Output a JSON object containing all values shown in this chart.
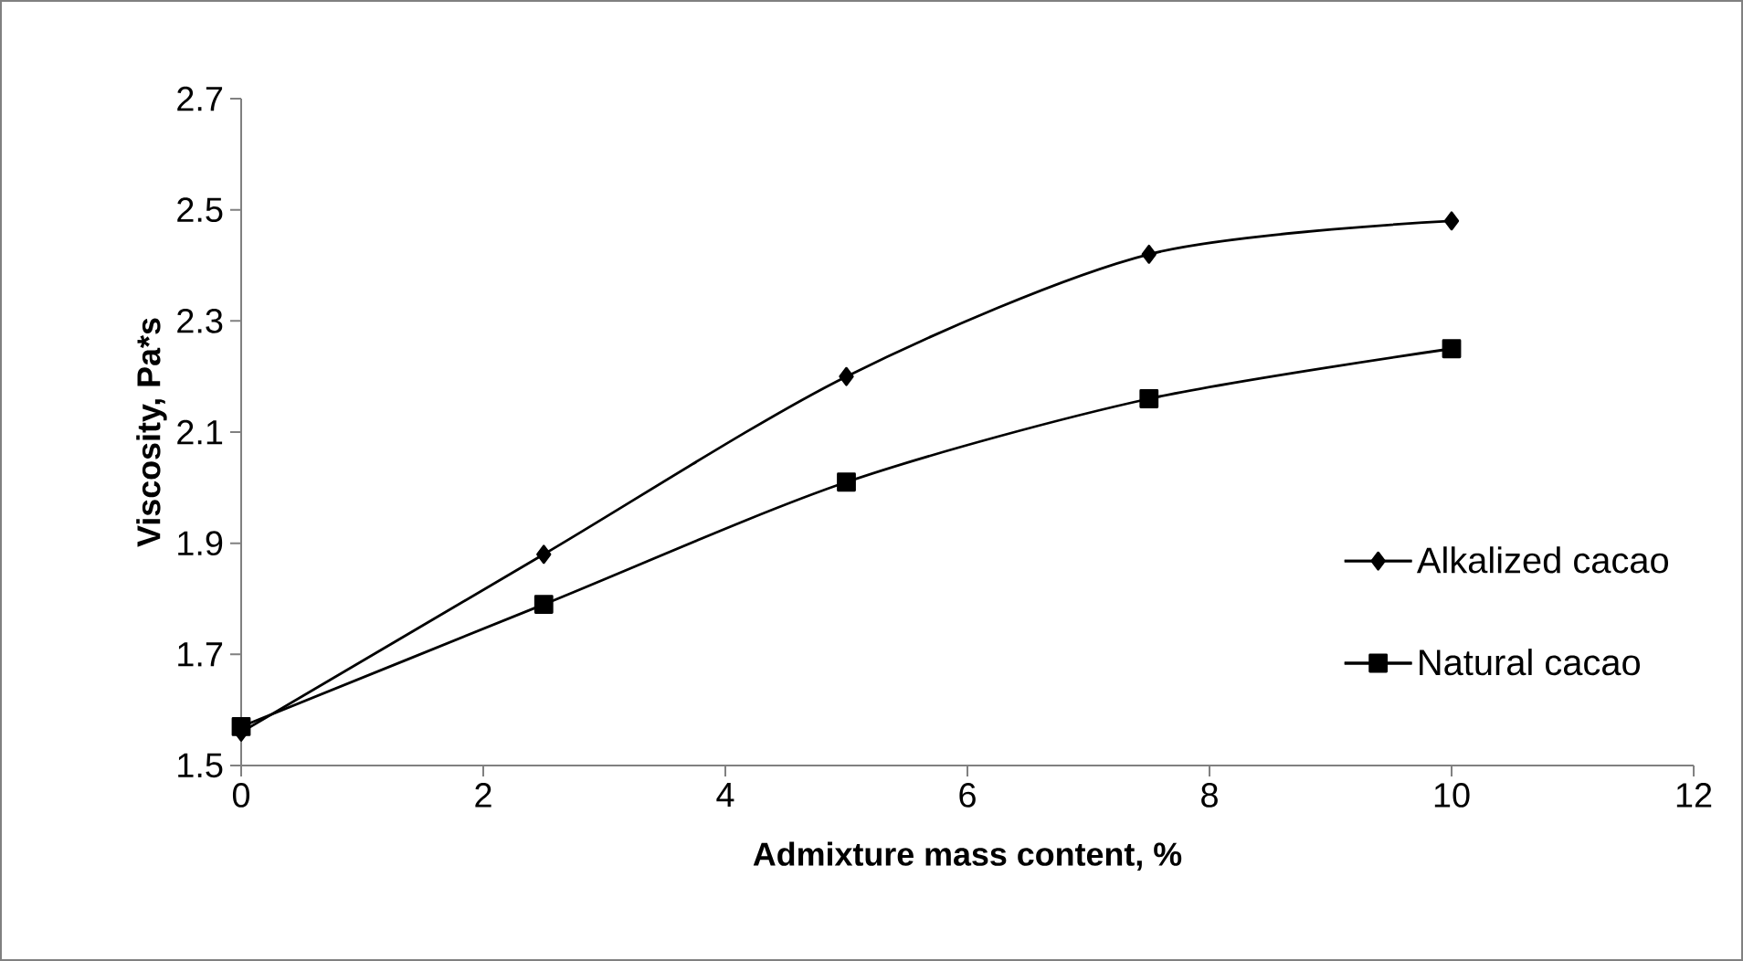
{
  "chart_data": {
    "type": "line",
    "xlabel": "Admixture mass content, %",
    "ylabel": "Viscosity, Pa*s",
    "x": [
      0,
      2.5,
      5,
      7.5,
      10
    ],
    "series": [
      {
        "name": "Alkalized cacao",
        "color": "#000000",
        "marker": "diamond",
        "values": [
          1.56,
          1.88,
          2.2,
          2.42,
          2.48
        ]
      },
      {
        "name": "Natural cacao",
        "color": "#000000",
        "marker": "square",
        "values": [
          1.57,
          1.79,
          2.01,
          2.16,
          2.25
        ]
      }
    ],
    "xlim": [
      0,
      12
    ],
    "xticks": [
      0,
      2,
      4,
      6,
      8,
      10,
      12
    ],
    "ylim": [
      1.5,
      2.7
    ],
    "yticks": [
      1.5,
      1.7,
      1.9,
      2.1,
      2.3,
      2.5,
      2.7
    ],
    "grid": false,
    "legend": "right",
    "line_style": "solid"
  }
}
